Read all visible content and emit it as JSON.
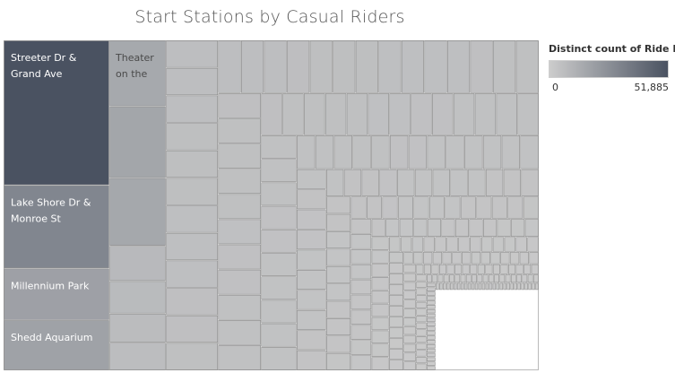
{
  "chart_data": {
    "type": "treemap",
    "title": "Start Stations by Casual Riders",
    "legend": {
      "title": "Distinct count of Ride Id",
      "min_label": "0",
      "max_label": "51,885",
      "min": 0,
      "max": 51885,
      "color_low": "#cccccc",
      "color_high": "#4a5261",
      "placement": "top-right"
    },
    "labeled_stations": [
      {
        "name": "Streeter Dr & Grand Ave",
        "value": 51885
      },
      {
        "name": "Lake Shore Dr & Monroe St",
        "value": 29800
      },
      {
        "name": "Millennium Park",
        "value": 18500
      },
      {
        "name": "Shedd Aquarium",
        "value": 18000
      },
      {
        "name": "Theater on the",
        "value": 15000
      }
    ],
    "other_stations": [
      16300,
      15400,
      8000,
      7400,
      6600,
      6300,
      6000,
      13500,
      13200,
      13100,
      12800,
      12600,
      3800,
      3600,
      3500,
      3400,
      3300,
      3200,
      3100,
      3000
    ],
    "grid": false
  }
}
